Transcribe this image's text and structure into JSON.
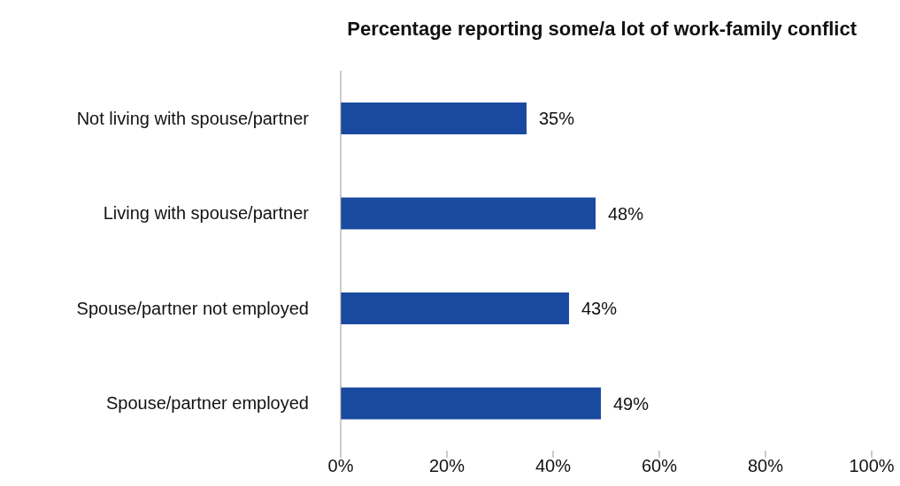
{
  "chart_data": {
    "type": "bar",
    "orientation": "horizontal",
    "title": "Percentage reporting some/a lot of work-family conflict",
    "categories": [
      "Not living with spouse/partner",
      "Living with spouse/partner",
      "Spouse/partner not employed",
      "Spouse/partner employed"
    ],
    "values": [
      35,
      48,
      43,
      49
    ],
    "value_labels": [
      "35%",
      "48%",
      "43%",
      "49%"
    ],
    "color": "#1a4a9f",
    "xlim": [
      0,
      100
    ],
    "xticks": [
      {
        "value": 0,
        "label": "0%"
      },
      {
        "value": 20,
        "label": "20%"
      },
      {
        "value": 40,
        "label": "40%"
      },
      {
        "value": 60,
        "label": "60%"
      },
      {
        "value": 80,
        "label": "80%"
      },
      {
        "value": 100,
        "label": "100%"
      }
    ],
    "grid": false,
    "legend": false
  }
}
